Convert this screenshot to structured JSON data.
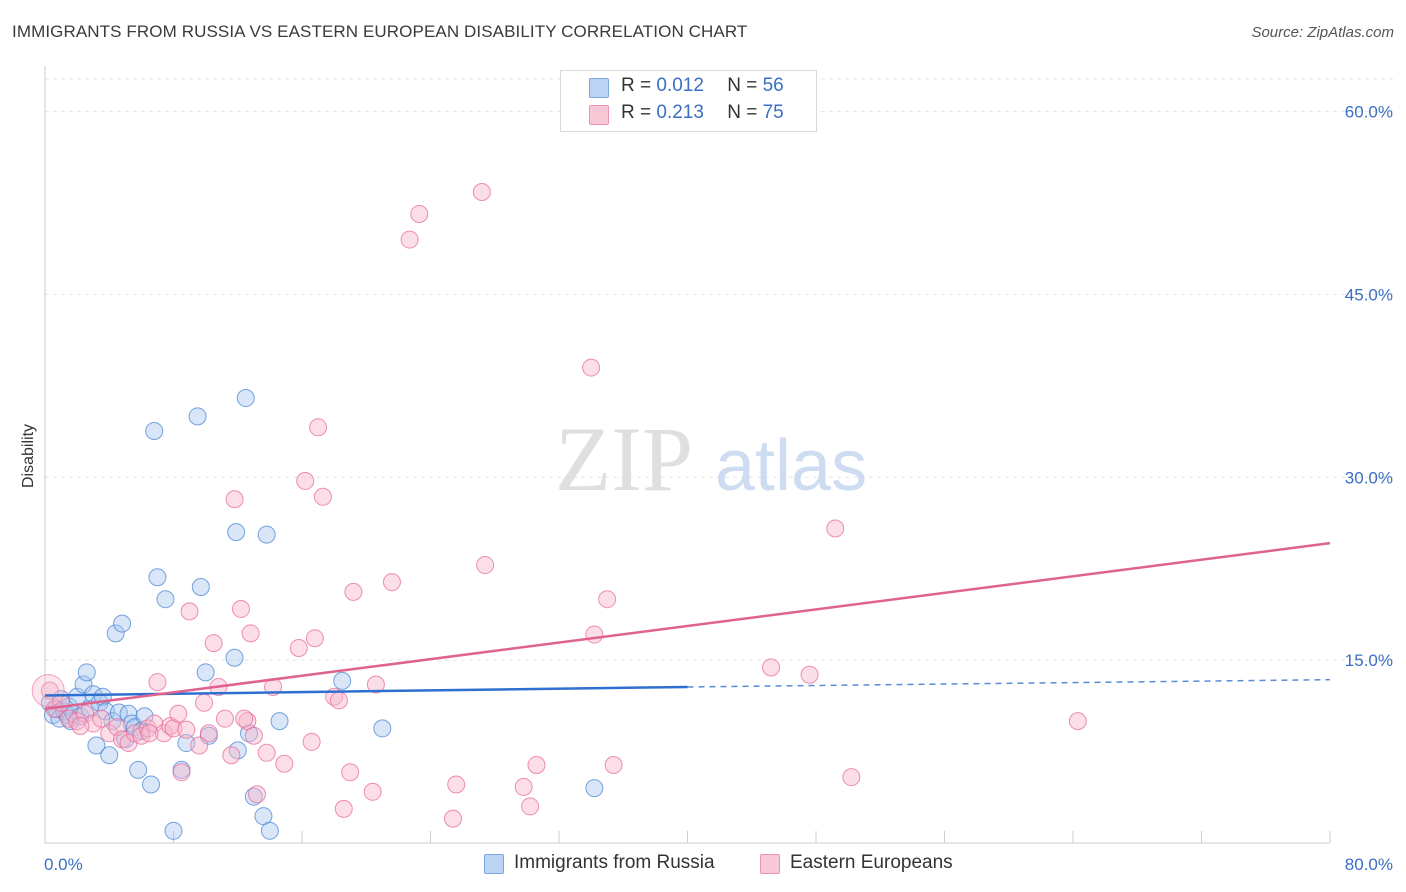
{
  "title": "IMMIGRANTS FROM RUSSIA VS EASTERN EUROPEAN DISABILITY CORRELATION CHART",
  "source": "Source: ZipAtlas.com",
  "watermark": {
    "zip": "ZIP",
    "atlas": "atlas"
  },
  "legend": {
    "rows": [
      {
        "r_label": "R =",
        "r_value": "0.012",
        "n_label": "N =",
        "n_value": "56",
        "color": "#a9c7f0"
      },
      {
        "r_label": "R =",
        "r_value": "0.213",
        "n_label": "N =",
        "n_value": "75",
        "color": "#f7b6cb"
      }
    ]
  },
  "bottom_legend": [
    {
      "label": "Immigrants from Russia",
      "color": "#a9c7f0"
    },
    {
      "label": "Eastern Europeans",
      "color": "#f7b6cb"
    }
  ],
  "chart_data": {
    "type": "scatter",
    "title": "IMMIGRANTS FROM RUSSIA VS EASTERN EUROPEAN DISABILITY CORRELATION CHART",
    "xlabel": "",
    "ylabel": "Disability",
    "xlim": [
      0,
      80
    ],
    "ylim": [
      0,
      63
    ],
    "x_tick_labels": [
      "0.0%",
      "80.0%"
    ],
    "y_ticks": [
      15,
      30,
      45,
      60
    ],
    "y_tick_labels": [
      "15.0%",
      "30.0%",
      "45.0%",
      "60.0%"
    ],
    "grid": true,
    "legend_position": "top-center",
    "series": [
      {
        "name": "Immigrants from Russia",
        "color": "#4a86d4",
        "fill": "#a9c7f0",
        "trend": {
          "x": [
            0,
            40
          ],
          "y": [
            12.1,
            12.8
          ],
          "dashed_to": [
            80,
            13.4
          ]
        },
        "points": [
          [
            0.3,
            11.5
          ],
          [
            0.5,
            10.5
          ],
          [
            0.7,
            11.0
          ],
          [
            0.9,
            10.2
          ],
          [
            1.0,
            11.8
          ],
          [
            1.2,
            10.8
          ],
          [
            1.4,
            10.5
          ],
          [
            1.5,
            11.2
          ],
          [
            1.6,
            10.0
          ],
          [
            1.8,
            10.6
          ],
          [
            2.0,
            12.0
          ],
          [
            2.2,
            10.4
          ],
          [
            2.4,
            13.0
          ],
          [
            2.6,
            14.0
          ],
          [
            2.8,
            11.0
          ],
          [
            3.0,
            12.2
          ],
          [
            3.2,
            8.0
          ],
          [
            3.4,
            11.5
          ],
          [
            3.6,
            12.0
          ],
          [
            3.8,
            10.8
          ],
          [
            4.0,
            7.2
          ],
          [
            4.2,
            10.0
          ],
          [
            4.4,
            17.2
          ],
          [
            4.6,
            10.7
          ],
          [
            4.8,
            18.0
          ],
          [
            5.0,
            8.5
          ],
          [
            5.2,
            10.6
          ],
          [
            5.4,
            9.8
          ],
          [
            5.6,
            9.5
          ],
          [
            5.8,
            6.0
          ],
          [
            6.0,
            9.2
          ],
          [
            6.2,
            10.4
          ],
          [
            6.6,
            4.8
          ],
          [
            6.8,
            33.8
          ],
          [
            7.0,
            21.8
          ],
          [
            7.5,
            20.0
          ],
          [
            8.0,
            1.0
          ],
          [
            8.5,
            6.0
          ],
          [
            8.8,
            8.2
          ],
          [
            9.5,
            35.0
          ],
          [
            9.7,
            21.0
          ],
          [
            10.0,
            14.0
          ],
          [
            10.2,
            8.8
          ],
          [
            11.8,
            15.2
          ],
          [
            11.9,
            25.5
          ],
          [
            12.0,
            7.6
          ],
          [
            12.5,
            36.5
          ],
          [
            12.7,
            9.0
          ],
          [
            13.0,
            3.8
          ],
          [
            13.8,
            25.3
          ],
          [
            13.6,
            2.2
          ],
          [
            14.0,
            1.0
          ],
          [
            18.5,
            13.3
          ],
          [
            21.0,
            9.4
          ],
          [
            34.2,
            4.5
          ],
          [
            14.6,
            10.0
          ]
        ]
      },
      {
        "name": "Eastern Europeans",
        "color": "#e86b98",
        "fill": "#f7b6cb",
        "trend": {
          "x": [
            0,
            80
          ],
          "y": [
            11.0,
            24.6
          ]
        },
        "points": [
          [
            0.3,
            12.5
          ],
          [
            0.6,
            11.0
          ],
          [
            1.0,
            11.5
          ],
          [
            1.5,
            10.2
          ],
          [
            2.0,
            10.0
          ],
          [
            2.5,
            10.6
          ],
          [
            3.0,
            9.8
          ],
          [
            3.5,
            10.2
          ],
          [
            4.0,
            9.0
          ],
          [
            4.5,
            9.5
          ],
          [
            4.8,
            8.5
          ],
          [
            5.2,
            8.2
          ],
          [
            5.6,
            9.0
          ],
          [
            6.0,
            8.8
          ],
          [
            6.4,
            9.4
          ],
          [
            6.8,
            9.8
          ],
          [
            7.0,
            13.2
          ],
          [
            7.4,
            9.0
          ],
          [
            7.8,
            9.6
          ],
          [
            8.0,
            9.4
          ],
          [
            8.3,
            10.6
          ],
          [
            8.5,
            5.8
          ],
          [
            8.8,
            9.3
          ],
          [
            9.0,
            19.0
          ],
          [
            9.6,
            8.0
          ],
          [
            9.9,
            11.5
          ],
          [
            10.2,
            9.0
          ],
          [
            10.5,
            16.4
          ],
          [
            10.8,
            12.8
          ],
          [
            11.2,
            10.2
          ],
          [
            11.6,
            7.2
          ],
          [
            11.8,
            28.2
          ],
          [
            12.2,
            19.2
          ],
          [
            12.6,
            10.0
          ],
          [
            12.8,
            17.2
          ],
          [
            13.0,
            8.8
          ],
          [
            13.8,
            7.4
          ],
          [
            14.2,
            12.8
          ],
          [
            14.9,
            6.5
          ],
          [
            15.8,
            16.0
          ],
          [
            16.2,
            29.7
          ],
          [
            16.6,
            8.3
          ],
          [
            16.8,
            16.8
          ],
          [
            17.0,
            34.1
          ],
          [
            17.3,
            28.4
          ],
          [
            18.0,
            12.0
          ],
          [
            18.3,
            11.7
          ],
          [
            18.6,
            2.8
          ],
          [
            19.0,
            5.8
          ],
          [
            19.2,
            20.6
          ],
          [
            20.4,
            4.2
          ],
          [
            20.6,
            13.0
          ],
          [
            21.6,
            21.4
          ],
          [
            22.7,
            49.5
          ],
          [
            23.3,
            51.6
          ],
          [
            25.4,
            2.0
          ],
          [
            25.6,
            4.8
          ],
          [
            27.2,
            53.4
          ],
          [
            27.4,
            22.8
          ],
          [
            29.8,
            4.6
          ],
          [
            30.2,
            3.0
          ],
          [
            30.6,
            6.4
          ],
          [
            34.0,
            39.0
          ],
          [
            34.2,
            17.1
          ],
          [
            35.0,
            20.0
          ],
          [
            35.4,
            6.4
          ],
          [
            45.2,
            14.4
          ],
          [
            47.6,
            13.8
          ],
          [
            49.2,
            25.8
          ],
          [
            50.2,
            5.4
          ],
          [
            64.3,
            10.0
          ],
          [
            13.2,
            4.0
          ],
          [
            6.5,
            9.0
          ],
          [
            12.4,
            10.2
          ],
          [
            2.2,
            9.6
          ]
        ]
      }
    ]
  }
}
